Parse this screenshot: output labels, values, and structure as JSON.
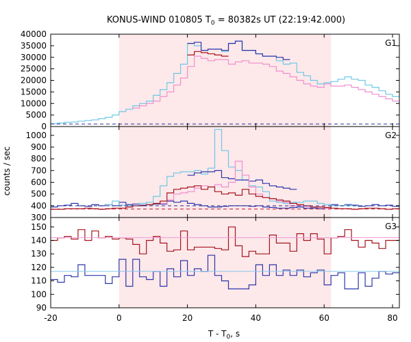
{
  "title": {
    "prefix": "KONUS-WIND 010805 T",
    "sub": "0",
    "suffix": " = 80382s UT (22:19:42.000)"
  },
  "xlabel": {
    "prefix": "T - T",
    "sub": "0",
    "suffix": ", s"
  },
  "ylabel": "counts / sec",
  "colors": {
    "shade": "#fde8ea",
    "dark_blue": "#2b35a8",
    "light_blue": "#6cc8e6",
    "dark_red": "#a4131b",
    "pink": "#ee8fcf",
    "navy_dash": "#2a2f9a",
    "red_dash": "#c0152a",
    "bg_blue": "#86c8ee",
    "bg_pink": "#f29ad8"
  },
  "chart_data": {
    "type": "line",
    "step": true,
    "xlim": [
      -20,
      82
    ],
    "x_ticks": [
      -20,
      0,
      20,
      40,
      60,
      80
    ],
    "shaded_interval": [
      0,
      62
    ],
    "panels": [
      {
        "label": "G1",
        "ylim": [
          0,
          40000
        ],
        "y_ticks": [
          0,
          5000,
          10000,
          15000,
          20000,
          25000,
          30000,
          35000,
          40000
        ],
        "x_edges": [
          -20,
          -18,
          -16,
          -14,
          -12,
          -10,
          -8,
          -6,
          -4,
          -2,
          0,
          2,
          4,
          6,
          8,
          10,
          12,
          14,
          16,
          18,
          20,
          22,
          24,
          26,
          28,
          30,
          32,
          34,
          36,
          38,
          40,
          42,
          44,
          46,
          48,
          50,
          52,
          54,
          56,
          58,
          60,
          62,
          64,
          66,
          68,
          70,
          72,
          74,
          76,
          78,
          80,
          82
        ],
        "series": [
          {
            "color_key": "light_blue",
            "style": "step",
            "values": [
              1200,
              1500,
              1800,
              2000,
              2300,
              2600,
              2900,
              3400,
              4000,
              5000,
              6500,
              7500,
              9000,
              10000,
              11000,
              13500,
              16000,
              19000,
              23000,
              27000,
              36000,
              35000,
              33000,
              33500,
              33500,
              32500,
              36000,
              37000,
              33000,
              33000,
              31500,
              30500,
              30500,
              28500,
              27000,
              27500,
              23500,
              22000,
              20000,
              18500,
              19000,
              19500,
              20500,
              21500,
              20500,
              20000,
              18000,
              17000,
              15500,
              14000,
              13000
            ]
          },
          {
            "color_key": "dark_blue",
            "style": "step",
            "x_range": [
              20,
              50
            ],
            "values": [
              36000,
              36500,
              33000,
              33500,
              33500,
              33000,
              36000,
              37000,
              33000,
              33000,
              31500,
              30500,
              30500,
              30000,
              29000
            ]
          },
          {
            "color_key": "pink",
            "style": "step",
            "x_range": [
              4,
              82
            ],
            "values": [
              8000,
              9000,
              10000,
              11000,
              13000,
              15000,
              18000,
              21000,
              26000,
              30500,
              29500,
              28500,
              29000,
              29000,
              27000,
              28000,
              28500,
              27500,
              27500,
              27000,
              26000,
              24000,
              23000,
              21500,
              20000,
              18500,
              17500,
              17000,
              18500,
              17500,
              17500,
              18000,
              17000,
              16000,
              15000,
              14000,
              13000,
              12000,
              11000
            ]
          },
          {
            "color_key": "dark_red",
            "style": "step",
            "x_range": [
              20,
              32
            ],
            "values": [
              31000,
              32500,
              32000,
              31500,
              31000,
              30500
            ]
          },
          {
            "color_key": "navy_dash",
            "style": "dash",
            "values": [
              1100
            ]
          }
        ]
      },
      {
        "label": "G2",
        "ylim": [
          300,
          1075
        ],
        "y_ticks": [
          300,
          400,
          500,
          600,
          700,
          800,
          900,
          1000
        ],
        "x_edges": [
          -20,
          -18,
          -16,
          -14,
          -12,
          -10,
          -8,
          -6,
          -4,
          -2,
          0,
          2,
          4,
          6,
          8,
          10,
          12,
          14,
          16,
          18,
          20,
          22,
          24,
          26,
          28,
          30,
          32,
          34,
          36,
          38,
          40,
          42,
          44,
          46,
          48,
          50,
          52,
          54,
          56,
          58,
          60,
          62,
          64,
          66,
          68,
          70,
          72,
          74,
          76,
          78,
          80,
          82
        ],
        "series": [
          {
            "color_key": "dark_blue",
            "style": "step",
            "values": [
              390,
              400,
              405,
              420,
              400,
              395,
              410,
              400,
              410,
              400,
              430,
              410,
              415,
              405,
              410,
              415,
              415,
              440,
              430,
              440,
              420,
              410,
              400,
              390,
              390,
              395,
              400,
              400,
              400,
              395,
              400,
              390,
              385,
              380,
              380,
              385,
              390,
              380,
              380,
              375,
              380,
              410,
              400,
              410,
              405,
              395,
              400,
              410,
              400,
              405,
              395
            ]
          },
          {
            "color_key": "light_blue",
            "style": "step",
            "x_range": [
              -4,
              70
            ],
            "values": [
              410,
              440,
              405,
              400,
              400,
              420,
              430,
              480,
              570,
              650,
              680,
              690,
              690,
              700,
              670,
              720,
              1050,
              870,
              730,
              700,
              620,
              570,
              560,
              520,
              440,
              430,
              420,
              430,
              430,
              440,
              440,
              420,
              410,
              400,
              400,
              405,
              400
            ]
          },
          {
            "color_key": "dark_blue",
            "style": "step",
            "x_range": [
              20,
              52
            ],
            "values": [
              660,
              680,
              690,
              690,
              700,
              640,
              630,
              620,
              620,
              610,
              620,
              590,
              570,
              560,
              550,
              540
            ]
          },
          {
            "color_key": "pink",
            "style": "step",
            "x_range": [
              12,
              62
            ],
            "values": [
              420,
              450,
              500,
              510,
              520,
              550,
              570,
              560,
              580,
              560,
              600,
              780,
              660,
              560,
              500,
              470,
              460,
              440,
              430,
              400,
              400,
              395,
              390,
              390,
              380
            ]
          },
          {
            "color_key": "dark_red",
            "style": "step",
            "x_range": [
              -20,
              82
            ],
            "values": [
              370,
              370,
              375,
              375,
              375,
              380,
              375,
              370,
              375,
              380,
              380,
              390,
              400,
              400,
              410,
              420,
              440,
              510,
              540,
              550,
              560,
              570,
              540,
              560,
              520,
              500,
              510,
              490,
              540,
              500,
              480,
              470,
              460,
              450,
              440,
              420,
              410,
              400,
              390,
              390,
              385,
              380,
              375,
              375,
              370,
              375,
              380,
              380,
              375,
              370,
              375
            ]
          },
          {
            "color_key": "navy_dash",
            "style": "dash",
            "values": [
              400
            ]
          },
          {
            "color_key": "red_dash",
            "style": "dash",
            "values": [
              372
            ]
          }
        ]
      },
      {
        "label": "G3",
        "ylim": [
          90,
          157
        ],
        "y_ticks": [
          90,
          100,
          110,
          120,
          130,
          140,
          150
        ],
        "x_edges": [
          -20,
          -18,
          -16,
          -14,
          -12,
          -10,
          -8,
          -6,
          -4,
          -2,
          0,
          2,
          4,
          6,
          8,
          10,
          12,
          14,
          16,
          18,
          20,
          22,
          24,
          26,
          28,
          30,
          32,
          34,
          36,
          38,
          40,
          42,
          44,
          46,
          48,
          50,
          52,
          54,
          56,
          58,
          60,
          62,
          64,
          66,
          68,
          70,
          72,
          74,
          76,
          78,
          80,
          82
        ],
        "series": [
          {
            "color_key": "dark_red",
            "style": "step",
            "values": [
              140,
              142,
              143,
              141,
              148,
              140,
              147,
              142,
              143,
              141,
              142,
              141,
              137,
              130,
              140,
              143,
              138,
              132,
              133,
              147,
              133,
              135,
              135,
              135,
              134,
              133,
              150,
              136,
              128,
              132,
              130,
              130,
              144,
              138,
              138,
              132,
              145,
              140,
              145,
              141,
              130,
              142,
              143,
              148,
              140,
              135,
              140,
              138,
              134,
              140,
              140
            ]
          },
          {
            "color_key": "dark_blue",
            "style": "step",
            "values": [
              111,
              109,
              114,
              113,
              122,
              114,
              114,
              114,
              108,
              113,
              126,
              106,
              126,
              113,
              111,
              117,
              106,
              119,
              113,
              125,
              114,
              119,
              117,
              129,
              114,
              110,
              104,
              104,
              104,
              107,
              122,
              114,
              122,
              114,
              118,
              114,
              118,
              113,
              116,
              118,
              107,
              114,
              116,
              104,
              104,
              116,
              106,
              112,
              117,
              115,
              116
            ]
          },
          {
            "color_key": "bg_pink",
            "style": "flat",
            "values": [
              142
            ]
          },
          {
            "color_key": "bg_blue",
            "style": "flat",
            "values": [
              117
            ]
          }
        ]
      }
    ]
  }
}
